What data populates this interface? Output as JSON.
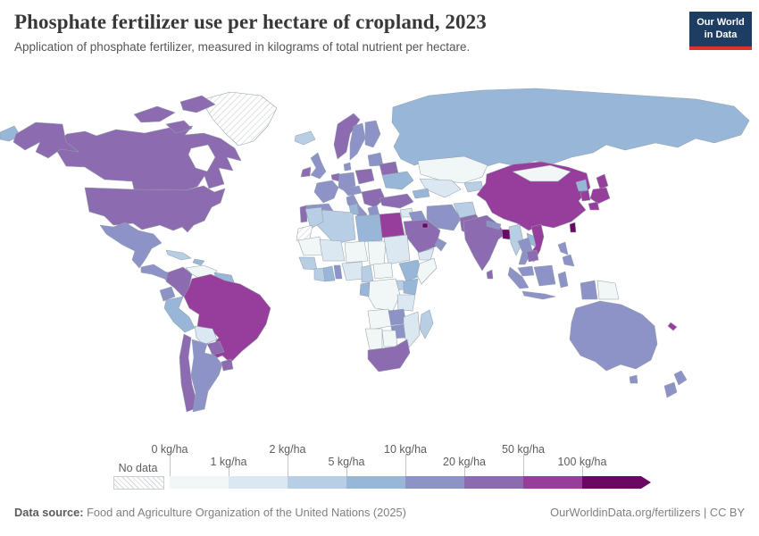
{
  "header": {
    "title": "Phosphate fertilizer use per hectare of cropland, 2023",
    "subtitle": "Application of phosphate fertilizer, measured in kilograms of total nutrient per hectare."
  },
  "logo": {
    "line1": "Our World",
    "line2": "in Data",
    "bg": "#1d3d63",
    "accent": "#d7352c"
  },
  "chart_data": {
    "type": "choropleth-map",
    "title": "Phosphate fertilizer use per hectare of cropland, 2023",
    "unit": "kg/ha",
    "scale_ticks": [
      "0 kg/ha",
      "1 kg/ha",
      "2 kg/ha",
      "5 kg/ha",
      "10 kg/ha",
      "20 kg/ha",
      "50 kg/ha",
      "100 kg/ha"
    ],
    "no_data_label": "No data",
    "buckets": [
      {
        "range": "0-1 kg/ha",
        "color": "#f1f7f6"
      },
      {
        "range": "1-2 kg/ha",
        "color": "#dbe7f1"
      },
      {
        "range": "2-5 kg/ha",
        "color": "#b7cee4"
      },
      {
        "range": "5-10 kg/ha",
        "color": "#97b6d8"
      },
      {
        "range": "10-20 kg/ha",
        "color": "#8d93c7"
      },
      {
        "range": "20-50 kg/ha",
        "color": "#8c6bb1"
      },
      {
        "range": "50-100 kg/ha",
        "color": "#973e9c"
      },
      {
        "range": "100+ kg/ha",
        "color": "#6a0863"
      }
    ],
    "ocean_color": "#ffffff",
    "border_color": "#95a0aa",
    "countries": [
      {
        "id": "greenland",
        "name": "Greenland",
        "bucket": "nodata"
      },
      {
        "id": "russia",
        "name": "Russia",
        "bucket": 3
      },
      {
        "id": "canada",
        "name": "Canada",
        "bucket": 5
      },
      {
        "id": "hudson-bay",
        "name": "Hudson Bay",
        "bucket": "ocean"
      },
      {
        "id": "usa",
        "name": "United States",
        "bucket": 5
      },
      {
        "id": "mexico",
        "name": "Mexico",
        "bucket": 4
      },
      {
        "id": "centralamerica",
        "name": "Central America",
        "bucket": 4
      },
      {
        "id": "cuba",
        "name": "Cuba",
        "bucket": 2
      },
      {
        "id": "hispaniola",
        "name": "Hispaniola",
        "bucket": 3
      },
      {
        "id": "colombia",
        "name": "Colombia",
        "bucket": 5
      },
      {
        "id": "venezuela",
        "name": "Venezuela",
        "bucket": 0
      },
      {
        "id": "guyanas",
        "name": "Guyanas",
        "bucket": 3
      },
      {
        "id": "ecuador",
        "name": "Ecuador",
        "bucket": 4
      },
      {
        "id": "peru",
        "name": "Peru",
        "bucket": 3
      },
      {
        "id": "brazil",
        "name": "Brazil",
        "bucket": 6
      },
      {
        "id": "bolivia",
        "name": "Bolivia",
        "bucket": 1
      },
      {
        "id": "paraguay",
        "name": "Paraguay",
        "bucket": 5
      },
      {
        "id": "chile",
        "name": "Chile",
        "bucket": 5
      },
      {
        "id": "argentina",
        "name": "Argentina",
        "bucket": 4
      },
      {
        "id": "uruguay",
        "name": "Uruguay",
        "bucket": 5
      },
      {
        "id": "iceland",
        "name": "Iceland",
        "bucket": 2
      },
      {
        "id": "norway",
        "name": "Norway",
        "bucket": 5
      },
      {
        "id": "sweden",
        "name": "Sweden",
        "bucket": 4
      },
      {
        "id": "finland",
        "name": "Finland",
        "bucket": 4
      },
      {
        "id": "denmark",
        "name": "Denmark",
        "bucket": 4
      },
      {
        "id": "uk",
        "name": "United Kingdom",
        "bucket": 4
      },
      {
        "id": "ireland",
        "name": "Ireland",
        "bucket": 5
      },
      {
        "id": "france",
        "name": "France",
        "bucket": 4
      },
      {
        "id": "benelux",
        "name": "Benelux",
        "bucket": 5
      },
      {
        "id": "germany",
        "name": "Germany",
        "bucket": 4
      },
      {
        "id": "poland",
        "name": "Poland",
        "bucket": 5
      },
      {
        "id": "alpine",
        "name": "Central Europe",
        "bucket": 4
      },
      {
        "id": "italy",
        "name": "Italy",
        "bucket": 4
      },
      {
        "id": "balkans",
        "name": "Balkans",
        "bucket": 5
      },
      {
        "id": "greece",
        "name": "Greece",
        "bucket": 4
      },
      {
        "id": "baltics",
        "name": "Baltics",
        "bucket": 4
      },
      {
        "id": "belarus",
        "name": "Belarus",
        "bucket": 5
      },
      {
        "id": "ukraine",
        "name": "Ukraine",
        "bucket": 3
      },
      {
        "id": "spain",
        "name": "Spain",
        "bucket": 4
      },
      {
        "id": "portugal",
        "name": "Portugal",
        "bucket": 5
      },
      {
        "id": "kazakhstan",
        "name": "Kazakhstan",
        "bucket": 0
      },
      {
        "id": "centralasia",
        "name": "Central Asia",
        "bucket": 1
      },
      {
        "id": "kyrgyz",
        "name": "Kyrgyzstan",
        "bucket": 2
      },
      {
        "id": "turkey",
        "name": "Turkey",
        "bucket": 5
      },
      {
        "id": "caucasus",
        "name": "Caucasus",
        "bucket": 3
      },
      {
        "id": "syria",
        "name": "Syria",
        "bucket": 1
      },
      {
        "id": "levant",
        "name": "Levant",
        "bucket": 5
      },
      {
        "id": "iraq",
        "name": "Iraq",
        "bucket": 4
      },
      {
        "id": "iran",
        "name": "Iran",
        "bucket": 4
      },
      {
        "id": "afghanistan",
        "name": "Afghanistan",
        "bucket": 2
      },
      {
        "id": "pakistan",
        "name": "Pakistan",
        "bucket": 5
      },
      {
        "id": "saudi",
        "name": "Saudi Arabia",
        "bucket": 5
      },
      {
        "id": "yemen",
        "name": "Yemen",
        "bucket": 1
      },
      {
        "id": "oman",
        "name": "Oman",
        "bucket": 4
      },
      {
        "id": "kuwait",
        "name": "Kuwait",
        "bucket": 7
      },
      {
        "id": "egypt",
        "name": "Egypt",
        "bucket": 6
      },
      {
        "id": "libya",
        "name": "Libya",
        "bucket": 3
      },
      {
        "id": "tunisia",
        "name": "Tunisia",
        "bucket": 3
      },
      {
        "id": "algeria",
        "name": "Algeria",
        "bucket": 2
      },
      {
        "id": "morocco",
        "name": "Morocco",
        "bucket": 2
      },
      {
        "id": "wsahara",
        "name": "Western Sahara",
        "bucket": "nodata"
      },
      {
        "id": "mauritania",
        "name": "Mauritania",
        "bucket": 0
      },
      {
        "id": "mali",
        "name": "Mali",
        "bucket": 1
      },
      {
        "id": "niger",
        "name": "Niger",
        "bucket": 0
      },
      {
        "id": "chad",
        "name": "Chad",
        "bucket": 0
      },
      {
        "id": "sudan",
        "name": "Sudan",
        "bucket": 1
      },
      {
        "id": "senegal",
        "name": "Senegal",
        "bucket": 2
      },
      {
        "id": "cotedivoire",
        "name": "Cote d'Ivoire",
        "bucket": 2
      },
      {
        "id": "ghana",
        "name": "Ghana",
        "bucket": 3
      },
      {
        "id": "benin",
        "name": "Benin",
        "bucket": 4
      },
      {
        "id": "nigeria",
        "name": "Nigeria",
        "bucket": 1
      },
      {
        "id": "cameroon",
        "name": "Cameroon",
        "bucket": 2
      },
      {
        "id": "car",
        "name": "Central African Republic",
        "bucket": 0
      },
      {
        "id": "ethiopia",
        "name": "Ethiopia",
        "bucket": 3
      },
      {
        "id": "somalia",
        "name": "Somalia",
        "bucket": 0
      },
      {
        "id": "kenya",
        "name": "Kenya",
        "bucket": 3
      },
      {
        "id": "uganda",
        "name": "Uganda",
        "bucket": 2
      },
      {
        "id": "drc",
        "name": "DR Congo",
        "bucket": 0
      },
      {
        "id": "congo",
        "name": "Congo",
        "bucket": 3
      },
      {
        "id": "tanzania",
        "name": "Tanzania",
        "bucket": 1
      },
      {
        "id": "angola",
        "name": "Angola",
        "bucket": 0
      },
      {
        "id": "zambia",
        "name": "Zambia",
        "bucket": 4
      },
      {
        "id": "mozambique",
        "name": "Mozambique",
        "bucket": 1
      },
      {
        "id": "zimbabwe",
        "name": "Zimbabwe",
        "bucket": 4
      },
      {
        "id": "namibia",
        "name": "Namibia",
        "bucket": 0
      },
      {
        "id": "botswana",
        "name": "Botswana",
        "bucket": 0
      },
      {
        "id": "southafrica",
        "name": "South Africa",
        "bucket": 5
      },
      {
        "id": "madagascar",
        "name": "Madagascar",
        "bucket": 2
      },
      {
        "id": "china",
        "name": "China",
        "bucket": 6
      },
      {
        "id": "mongolia",
        "name": "Mongolia",
        "bucket": 0
      },
      {
        "id": "india",
        "name": "India",
        "bucket": 5
      },
      {
        "id": "nepal",
        "name": "Nepal",
        "bucket": 4
      },
      {
        "id": "bangladesh",
        "name": "Bangladesh",
        "bucket": 7
      },
      {
        "id": "srilanka",
        "name": "Sri Lanka",
        "bucket": 5
      },
      {
        "id": "myanmar",
        "name": "Myanmar",
        "bucket": 2
      },
      {
        "id": "laos",
        "name": "Laos",
        "bucket": 3
      },
      {
        "id": "vietnam",
        "name": "Vietnam",
        "bucket": 6
      },
      {
        "id": "thailand",
        "name": "Thailand",
        "bucket": 4
      },
      {
        "id": "cambodia",
        "name": "Cambodia",
        "bucket": 5
      },
      {
        "id": "malaysia",
        "name": "Malaysia",
        "bucket": 4
      },
      {
        "id": "indonesia",
        "name": "Indonesia",
        "bucket": 4
      },
      {
        "id": "png",
        "name": "Papua New Guinea",
        "bucket": 0
      },
      {
        "id": "philippines",
        "name": "Philippines",
        "bucket": 4
      },
      {
        "id": "taiwan",
        "name": "Taiwan",
        "bucket": 7
      },
      {
        "id": "nkorea",
        "name": "North Korea",
        "bucket": 3
      },
      {
        "id": "skorea",
        "name": "South Korea",
        "bucket": 6
      },
      {
        "id": "japan",
        "name": "Japan",
        "bucket": 6
      },
      {
        "id": "australia",
        "name": "Australia",
        "bucket": 4
      },
      {
        "id": "newzealand",
        "name": "New Zealand",
        "bucket": 4
      },
      {
        "id": "newcaledonia",
        "name": "New Caledonia",
        "bucket": 6
      }
    ]
  },
  "footer": {
    "source_label": "Data source:",
    "source": " Food and Agriculture Organization of the United Nations (2025)",
    "right": "OurWorldinData.org/fertilizers | CC BY"
  }
}
